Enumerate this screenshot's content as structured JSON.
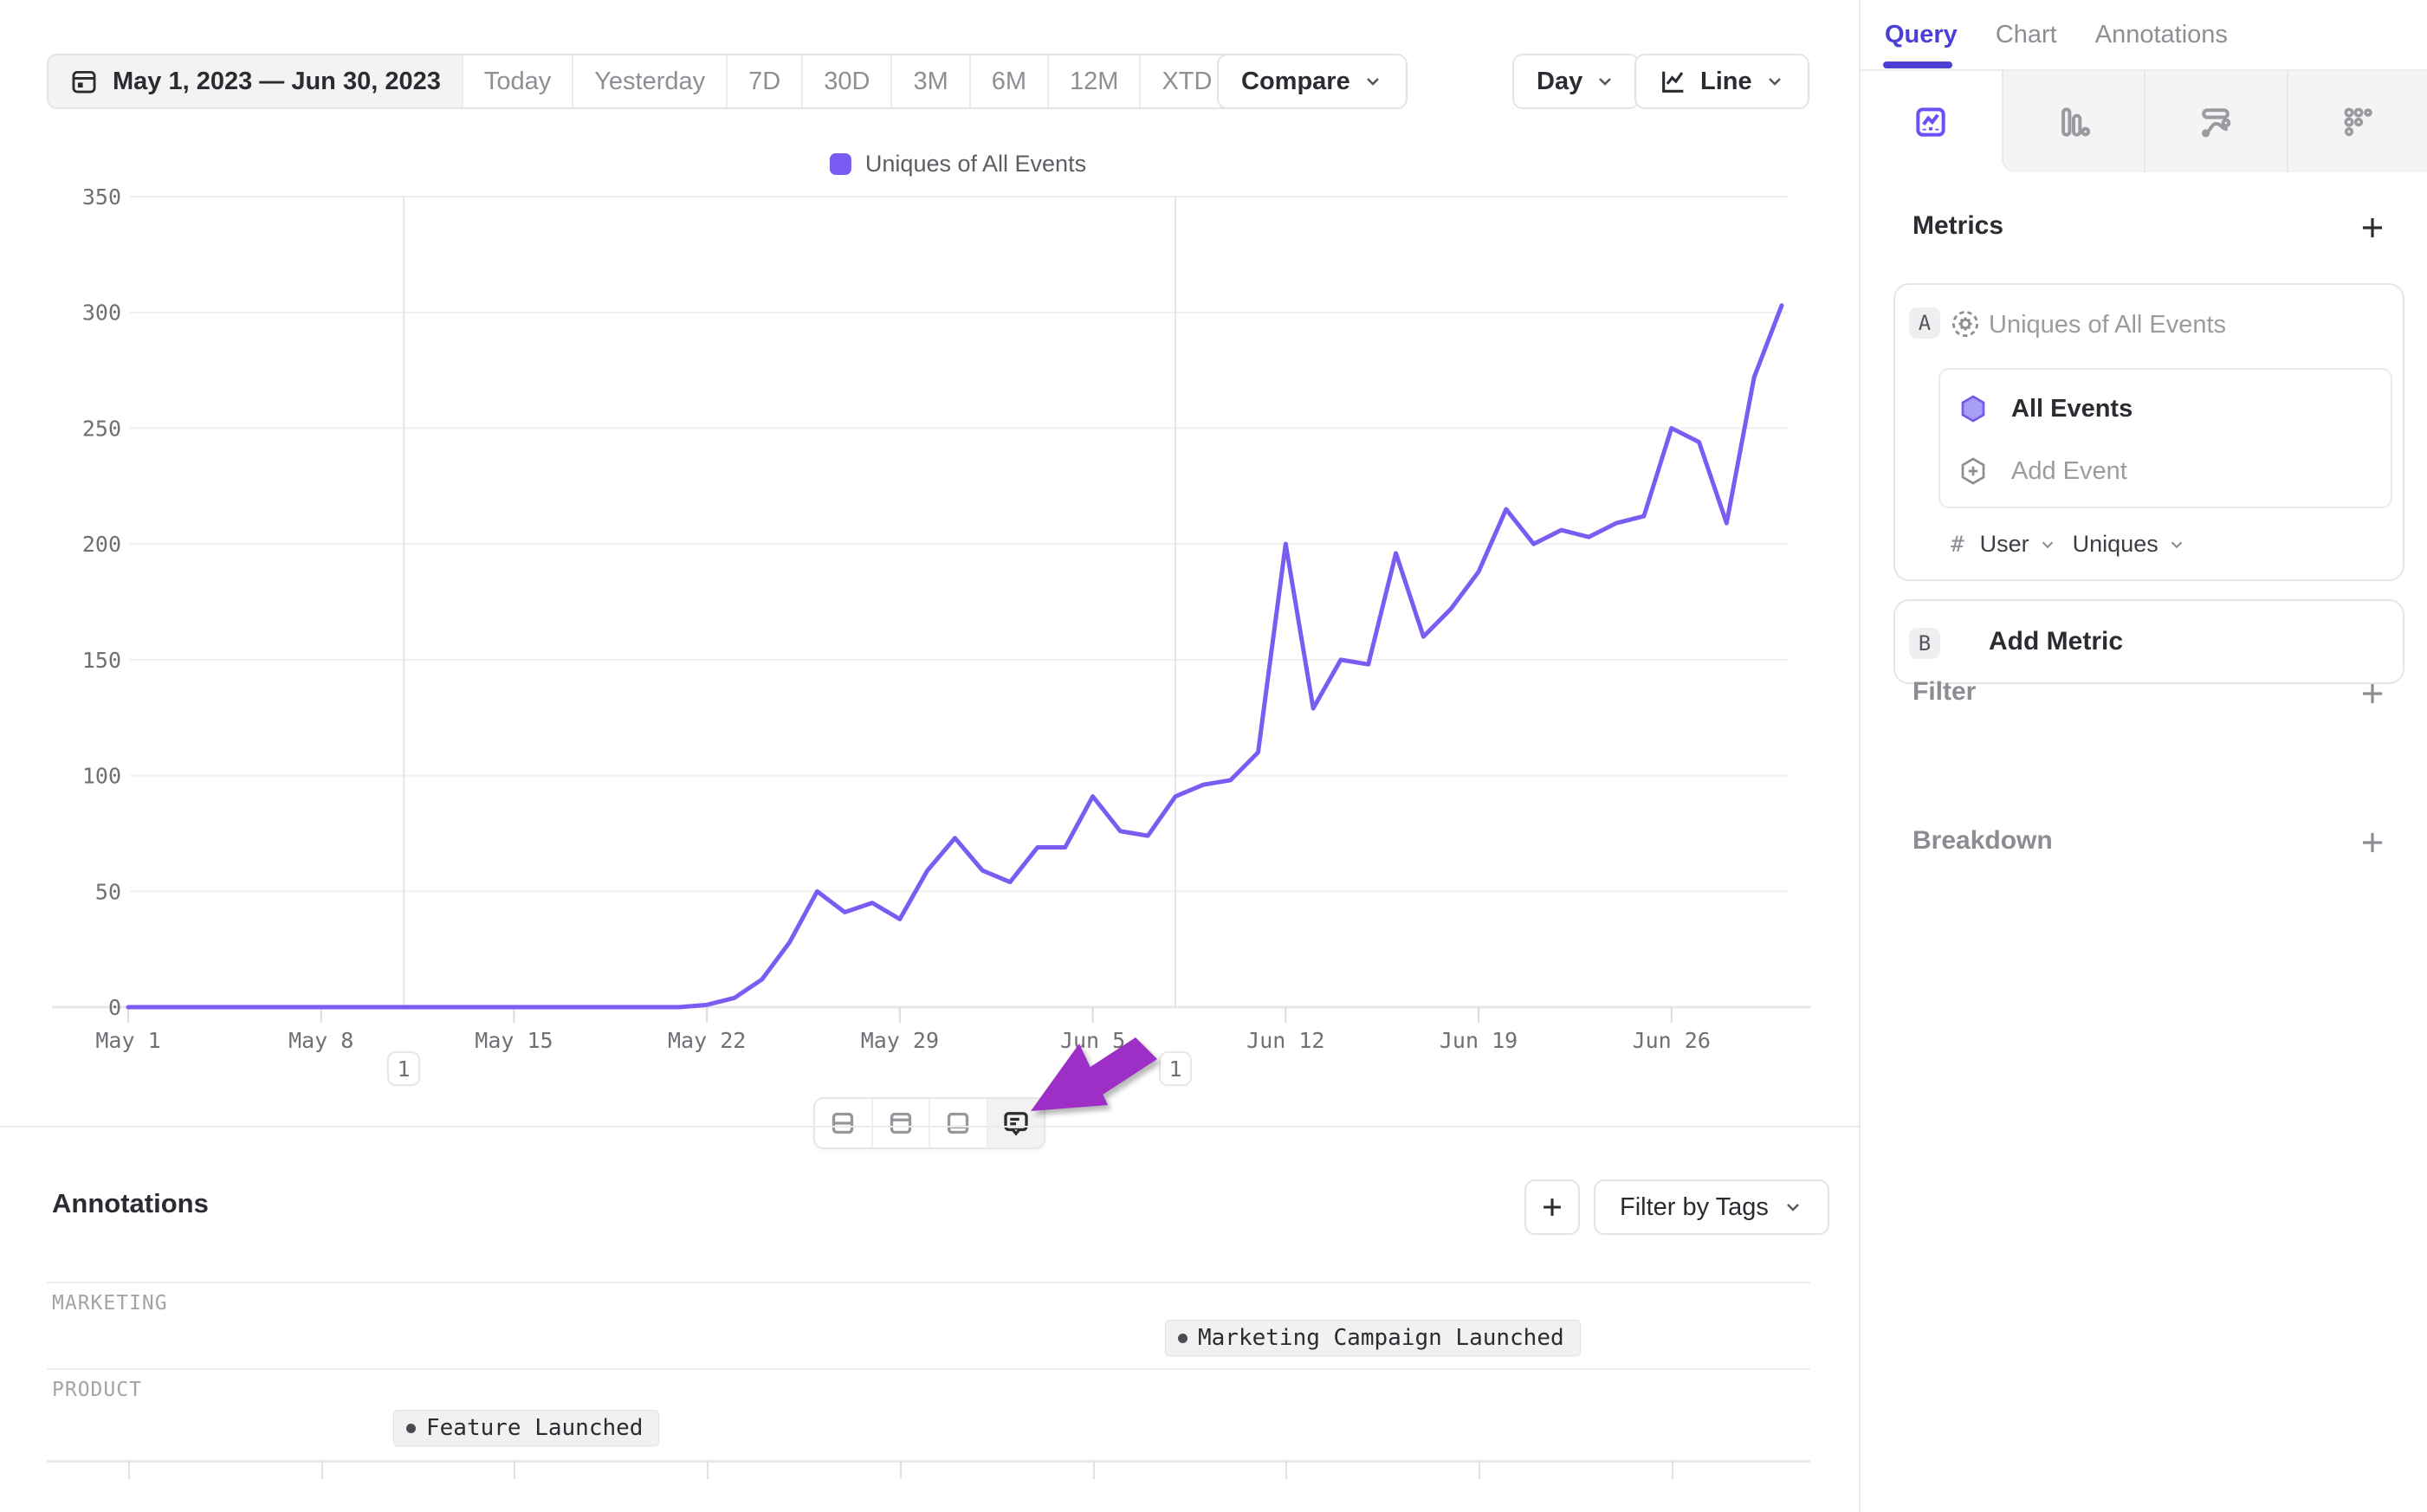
{
  "colors": {
    "accent": "#4b3fd6",
    "line": "#7b5cf2",
    "arrow": "#9e2fc6",
    "gridline": "#efeff1",
    "axis_line": "#e7e7ea",
    "annotation_line": "#e5e5e9",
    "hexagon_fill": "#a99ef6",
    "hexagon_stroke": "#6f5bea"
  },
  "toolbar": {
    "date_range": "May 1, 2023 — Jun 30, 2023",
    "presets": [
      "Today",
      "Yesterday",
      "7D",
      "30D",
      "3M",
      "6M",
      "12M"
    ],
    "xtd": "XTD",
    "compare": "Compare",
    "granularity": "Day",
    "chart_type": "Line"
  },
  "legend": {
    "label": "Uniques of All Events"
  },
  "chart_data": {
    "type": "line",
    "title": "Uniques of All Events",
    "xlabel": "",
    "ylabel": "",
    "ylim": [
      0,
      350
    ],
    "y_ticks": [
      0,
      50,
      100,
      150,
      200,
      250,
      300,
      350
    ],
    "grid": "horizontal",
    "legend_position": "top-center",
    "x_start_label": "May 1, 2023",
    "x_end_label": "Jun 30, 2023",
    "x_tick_indices": [
      0,
      7,
      14,
      21,
      28,
      35,
      42,
      49,
      56
    ],
    "x_tick_labels": [
      "May 1",
      "May 8",
      "May 15",
      "May 22",
      "May 29",
      "Jun 5",
      "Jun 12",
      "Jun 19",
      "Jun 26"
    ],
    "series": [
      {
        "name": "Uniques of All Events",
        "color": "#7b5cf2",
        "values": [
          0,
          0,
          0,
          0,
          0,
          0,
          0,
          0,
          0,
          0,
          0,
          0,
          0,
          0,
          0,
          0,
          0,
          0,
          0,
          0,
          0,
          1,
          4,
          12,
          28,
          50,
          41,
          45,
          38,
          59,
          73,
          59,
          54,
          69,
          69,
          91,
          76,
          74,
          91,
          96,
          98,
          110,
          200,
          129,
          150,
          148,
          196,
          160,
          172,
          188,
          215,
          200,
          206,
          203,
          209,
          212,
          250,
          244,
          209,
          272,
          303
        ]
      }
    ],
    "annotations": [
      {
        "day_index": 10,
        "date": "May 11",
        "count": "1",
        "label": "Feature Launched",
        "category": "PRODUCT"
      },
      {
        "day_index": 38,
        "date": "Jun 8",
        "count": "1",
        "label": "Marketing Campaign Launched",
        "category": "MARKETING"
      }
    ]
  },
  "chart_toolbar": {
    "icons": [
      "split-horizontal-view",
      "top-panel-view",
      "bottom-panel-view",
      "annotations-comment"
    ],
    "active": "annotations-comment"
  },
  "annotations_panel": {
    "title": "Annotations",
    "add_label": "+",
    "filter_by_tags": "Filter by Tags",
    "rows": [
      {
        "category": "MARKETING",
        "chips": [
          {
            "label": "Marketing Campaign Launched",
            "day_index": 38
          }
        ]
      },
      {
        "category": "PRODUCT",
        "chips": [
          {
            "label": "Feature Launched",
            "day_index": 10
          }
        ]
      }
    ]
  },
  "sidebar": {
    "tabs": [
      {
        "label": "Query",
        "active": true
      },
      {
        "label": "Chart",
        "active": false
      },
      {
        "label": "Annotations",
        "active": false
      }
    ],
    "view_icons": [
      "insights-line",
      "bar-chart",
      "flows",
      "retention-grid"
    ],
    "active_view_icon": "insights-line",
    "metrics": {
      "header": "Metrics",
      "metric_a": {
        "badge": "A",
        "title": "Uniques of All Events",
        "event": "All Events",
        "add_event": "Add Event",
        "count_symbol": "#",
        "entity": "User",
        "aggregation": "Uniques"
      },
      "metric_b": {
        "badge": "B",
        "label": "Add Metric"
      }
    },
    "filter": {
      "label": "Filter"
    },
    "breakdown": {
      "label": "Breakdown"
    }
  }
}
